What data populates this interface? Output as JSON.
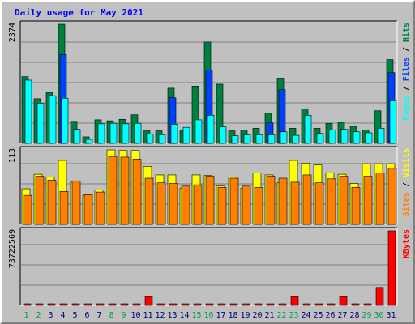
{
  "chart_data": {
    "type": "bar",
    "title": "Daily usage for May 2021",
    "categories": [
      "1",
      "2",
      "3",
      "4",
      "5",
      "6",
      "7",
      "8",
      "9",
      "10",
      "11",
      "12",
      "13",
      "14",
      "15",
      "16",
      "17",
      "18",
      "19",
      "20",
      "21",
      "22",
      "23",
      "24",
      "25",
      "26",
      "27",
      "28",
      "29",
      "30",
      "31"
    ],
    "weekend_days": [
      "1",
      "2",
      "8",
      "9",
      "15",
      "16",
      "22",
      "23",
      "29",
      "30"
    ],
    "panels": [
      {
        "name": "top",
        "ymax_label": "2374",
        "ylim": [
          0,
          2374
        ],
        "series": [
          {
            "name": "Hits",
            "color": "#008040",
            "values": [
              1330,
              890,
              1010,
              2374,
              440,
              130,
              470,
              450,
              480,
              570,
              250,
              250,
              1100,
              250,
              1140,
              2020,
              1180,
              250,
              270,
              300,
              600,
              1300,
              300,
              690,
              300,
              400,
              420,
              340,
              270,
              650,
              1670
            ]
          },
          {
            "name": "Files",
            "color": "#0040ff",
            "values": [
              0,
              0,
              0,
              1770,
              0,
              0,
              0,
              0,
              0,
              0,
              0,
              0,
              910,
              0,
              0,
              1460,
              0,
              0,
              0,
              0,
              410,
              1070,
              0,
              0,
              0,
              0,
              0,
              0,
              0,
              0,
              1410
            ]
          },
          {
            "name": "Pages",
            "color": "#00ffff",
            "values": [
              1260,
              800,
              950,
              900,
              280,
              80,
              390,
              400,
              390,
              400,
              190,
              170,
              380,
              320,
              470,
              560,
              330,
              150,
              170,
              170,
              170,
              230,
              160,
              560,
              200,
              270,
              280,
              230,
              210,
              300,
              850
            ]
          }
        ]
      },
      {
        "name": "middle",
        "ymax_label": "113",
        "ylim": [
          0,
          113
        ],
        "series": [
          {
            "name": "Visits",
            "color": "#ffff00",
            "values": [
              54,
              76,
              72,
              97,
              64,
              44,
              52,
              113,
              112,
              112,
              88,
              75,
              75,
              55,
              75,
              74,
              58,
              72,
              55,
              78,
              75,
              63,
              97,
              93,
              90,
              78,
              76,
              62,
              92,
              92,
              92
            ]
          },
          {
            "name": "Sites",
            "color": "#ff8000",
            "values": [
              44,
              73,
              67,
              50,
              66,
              45,
              49,
              103,
              102,
              99,
              70,
              63,
              62,
              58,
              60,
              73,
              56,
              70,
              58,
              56,
              73,
              70,
              64,
              75,
              63,
              69,
              73,
              56,
              73,
              78,
              85
            ]
          }
        ]
      },
      {
        "name": "bottom",
        "ymax_label": "73722569",
        "ylim": [
          0,
          73722569
        ],
        "series": [
          {
            "name": "KBytes",
            "color": "#ff0000",
            "values": [
              350000,
              350000,
              350000,
              350000,
              350000,
              350000,
              350000,
              350000,
              350000,
              350000,
              8700000,
              350000,
              350000,
              350000,
              350000,
              350000,
              350000,
              350000,
              350000,
              350000,
              350000,
              350000,
              8700000,
              350000,
              350000,
              350000,
              8700000,
              350000,
              350000,
              17800000,
              73722569
            ]
          }
        ]
      }
    ],
    "right_labels": {
      "top": [
        {
          "text": "Pages",
          "color": "#00ffff"
        },
        {
          "text": " / ",
          "color": "#000000"
        },
        {
          "text": "Files",
          "color": "#0040ff"
        },
        {
          "text": " / ",
          "color": "#000000"
        },
        {
          "text": "Hits",
          "color": "#008040"
        }
      ],
      "middle": [
        {
          "text": "Sites",
          "color": "#ff8000"
        },
        {
          "text": " / ",
          "color": "#000000"
        },
        {
          "text": "Visits",
          "color": "#ffff00"
        }
      ],
      "bottom": [
        {
          "text": "KBytes",
          "color": "#ff0000"
        }
      ]
    },
    "colors": {
      "title": "#0000ff",
      "weekday": "#000080",
      "weekend": "#00a050",
      "panel_bg": "#c0c0c0"
    }
  }
}
